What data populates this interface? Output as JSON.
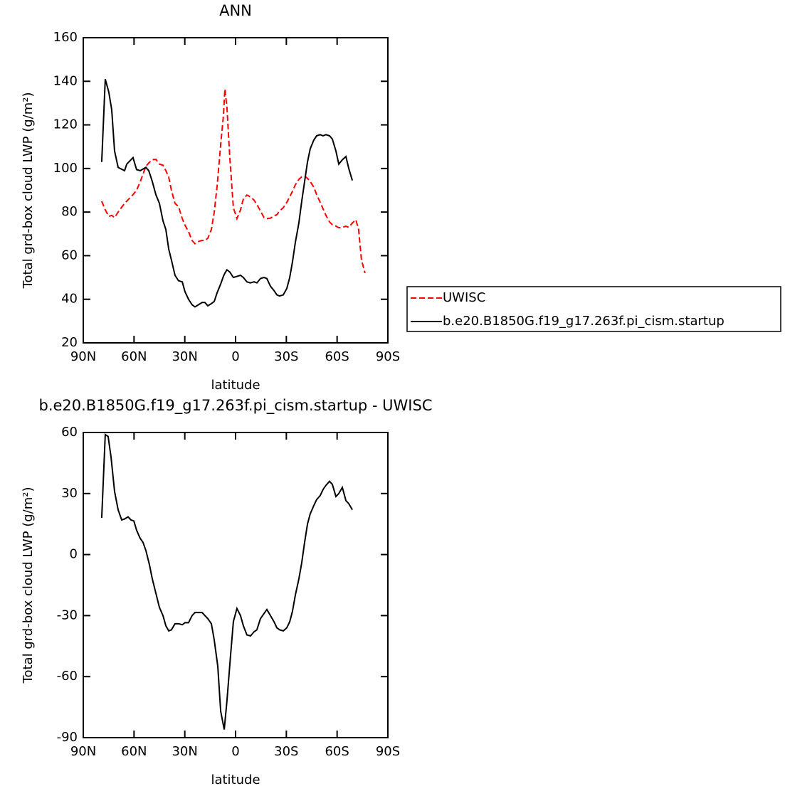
{
  "chart_data": [
    {
      "type": "line",
      "title": "ANN",
      "xlabel": "latitude",
      "ylabel": "Total grd-box cloud LWP (g/m²)",
      "x": [
        79.1,
        77.0,
        74.9,
        73.2,
        71.5,
        69.4,
        65.6,
        64.3,
        60.6,
        58.5,
        56.3,
        53.0,
        51.3,
        49.2,
        47.1,
        45.0,
        42.9,
        41.2,
        39.5,
        37.9,
        35.8,
        33.7,
        31.5,
        29.9,
        27.8,
        25.7,
        24.0,
        21.9,
        19.8,
        18.1,
        16.4,
        14.3,
        12.6,
        10.9,
        8.8,
        7.2,
        6.3,
        5.1,
        3.4,
        1.3,
        -0.8,
        -2.9,
        -4.6,
        -6.7,
        -8.8,
        -10.9,
        -12.6,
        -14.7,
        -16.8,
        -18.5,
        -20.6,
        -22.7,
        -24.4,
        -26.0,
        -28.2,
        -30.3,
        -32.0,
        -33.6,
        -35.3,
        -37.4,
        -39.1,
        -40.8,
        -42.5,
        -44.1,
        -46.2,
        -47.9,
        -50.0,
        -51.7,
        -53.4,
        -55.5,
        -57.2,
        -59.3,
        -61.0,
        -63.1,
        -65.2,
        -66.9,
        -69.0,
        -71.1,
        -72.7,
        -74.4,
        -76.5
      ],
      "series": [
        {
          "name": "UWISC",
          "color": "#ff0000",
          "dashed": true,
          "values": [
            85,
            81,
            78,
            78.5,
            77.5,
            80,
            84,
            85,
            88,
            90,
            94,
            101,
            102.5,
            104,
            104.2,
            102,
            101.5,
            99,
            96,
            90,
            84,
            82.5,
            77,
            74,
            71,
            67,
            65.5,
            66.5,
            67,
            67,
            68,
            72,
            80,
            92,
            111,
            124,
            136.5,
            128,
            105,
            82,
            77,
            81,
            86,
            87.8,
            87,
            85.5,
            83.5,
            80.5,
            77.5,
            77,
            77.2,
            78.3,
            78.8,
            80.5,
            82,
            84.5,
            87,
            89.5,
            92.5,
            95,
            96.2,
            96.5,
            95.5,
            94,
            91.5,
            88,
            84.5,
            81.5,
            78.5,
            75.5,
            74.2,
            73.6,
            72.8,
            73,
            73.5,
            73,
            75,
            76.5,
            72,
            58,
            52
          ]
        },
        {
          "name": "b.e20.B1850G.f19_g17.263f.pi_cism.startup",
          "color": "#000000",
          "dashed": false,
          "values": [
            103,
            141,
            135,
            127,
            108,
            100.5,
            99,
            102,
            105,
            99.5,
            99,
            100.5,
            99,
            94,
            88,
            84,
            76,
            72,
            63,
            58,
            51,
            48.5,
            48,
            43.5,
            40,
            37.5,
            36.5,
            37.5,
            38.5,
            38.5,
            37,
            38,
            39,
            43,
            47,
            50.5,
            52,
            53.5,
            52.5,
            50,
            50.5,
            51,
            50,
            48,
            47.5,
            48,
            47.5,
            49.5,
            50,
            49.5,
            46,
            44,
            42,
            41.5,
            42,
            45,
            50,
            57,
            66,
            75,
            85,
            94,
            103,
            109,
            113,
            115,
            115.5,
            115,
            115.5,
            115,
            113.5,
            108,
            102,
            104,
            105.5,
            100,
            94.5,
            null,
            null,
            null,
            null
          ]
        }
      ],
      "xlim": [
        90,
        -90
      ],
      "xticks": [
        {
          "value": 90,
          "label": "90N"
        },
        {
          "value": 60,
          "label": "60N"
        },
        {
          "value": 30,
          "label": "30N"
        },
        0,
        {
          "value": -30,
          "label": "30S"
        },
        {
          "value": -60,
          "label": "60S"
        },
        {
          "value": -90,
          "label": "90S"
        }
      ],
      "ylim": [
        20,
        160
      ],
      "yticks": [
        20,
        40,
        60,
        80,
        100,
        120,
        140,
        160
      ],
      "legend": "right"
    },
    {
      "type": "line",
      "title": "b.e20.B1850G.f19_g17.263f.pi_cism.startup - UWISC",
      "xlabel": "latitude",
      "ylabel": "Total grd-box cloud LWP (g/m²)",
      "x": [
        79.1,
        77.0,
        75.3,
        73.6,
        71.5,
        69.4,
        67.3,
        65.6,
        63.5,
        61.8,
        60.1,
        58.5,
        56.4,
        54.7,
        53.0,
        50.9,
        49.2,
        47.1,
        45.0,
        42.9,
        41.2,
        39.5,
        37.9,
        35.8,
        33.7,
        31.5,
        29.9,
        27.8,
        25.7,
        24.0,
        21.9,
        19.8,
        18.1,
        16.4,
        14.3,
        12.6,
        10.5,
        8.8,
        6.7,
        5.1,
        3.0,
        1.3,
        -0.8,
        -2.9,
        -4.6,
        -6.7,
        -8.8,
        -10.9,
        -12.6,
        -14.7,
        -16.8,
        -18.5,
        -20.6,
        -22.7,
        -24.4,
        -26.1,
        -28.2,
        -30.3,
        -32.0,
        -33.6,
        -35.3,
        -37.4,
        -39.1,
        -40.8,
        -42.5,
        -44.1,
        -46.2,
        -47.9,
        -50.0,
        -51.7,
        -53.4,
        -55.5,
        -57.2,
        -59.3,
        -61.0,
        -63.1,
        -65.2,
        -66.9,
        -69.0
      ],
      "series": [
        {
          "color": "#000000",
          "dashed": false,
          "values": [
            18,
            59,
            58,
            48,
            31,
            22,
            17,
            17.5,
            18.5,
            17,
            16.5,
            12,
            8,
            6,
            2,
            -5,
            -12,
            -19,
            -26,
            -30,
            -35,
            -37.5,
            -37,
            -34,
            -34,
            -34.5,
            -33.5,
            -33.5,
            -30,
            -28.5,
            -28.5,
            -28.5,
            -30,
            -31.5,
            -34,
            -42,
            -55,
            -77,
            -86,
            -72,
            -50,
            -33,
            -26.5,
            -30,
            -35,
            -39.5,
            -40,
            -38,
            -37,
            -31.5,
            -29,
            -27,
            -30,
            -33,
            -36,
            -37,
            -37.5,
            -36,
            -33,
            -28,
            -20,
            -12,
            -4,
            6,
            15,
            20,
            24,
            27,
            29,
            32,
            34,
            36,
            34.5,
            28.5,
            30,
            33,
            26.5,
            25,
            22
          ]
        }
      ],
      "xlim": [
        90,
        -90
      ],
      "xticks": [
        {
          "value": 90,
          "label": "90N"
        },
        {
          "value": 60,
          "label": "60N"
        },
        {
          "value": 30,
          "label": "30N"
        },
        0,
        {
          "value": -30,
          "label": "30S"
        },
        {
          "value": -60,
          "label": "60S"
        },
        {
          "value": -90,
          "label": "90S"
        }
      ],
      "ylim": [
        -90,
        60
      ],
      "yticks": [
        -90,
        -60,
        -30,
        0,
        30,
        60
      ]
    }
  ]
}
